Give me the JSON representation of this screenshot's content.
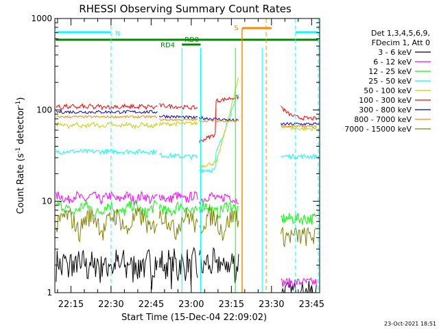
{
  "chart_data": {
    "type": "line",
    "title": "RHESSI Observing Summary Count Rates",
    "xlabel": "Start Time (15-Dec-04 22:09:02)",
    "ylabel_main": "Count Rate (s",
    "ylabel_sup1": "-1",
    "ylabel_mid": " detector",
    "ylabel_sup2": "-1",
    "ylabel_end": ")",
    "y_scale": "log",
    "ylim": [
      1,
      1000
    ],
    "xlim_min": [
      0,
      99
    ],
    "y_tick_labels": [
      "1",
      "10",
      "100",
      "1000"
    ],
    "y_tick_values": [
      1,
      10,
      100,
      1000
    ],
    "x_tick_labels": [
      "22:15",
      "22:30",
      "22:45",
      "23:00",
      "23:15",
      "23:30",
      "23:45"
    ],
    "x_tick_values_min": [
      6,
      21,
      36,
      51,
      66,
      81,
      96
    ],
    "legend_header": [
      "Det 1,3,4,5,6,9,",
      "FDecim 1, Att 0"
    ],
    "series": [
      {
        "name": "3 - 6 keV",
        "color": "#000000"
      },
      {
        "name": "6 - 12 keV",
        "color": "#ff00ff"
      },
      {
        "name": "12 - 25 keV",
        "color": "#00ff00"
      },
      {
        "name": "25 - 50 keV",
        "color": "#00ffff"
      },
      {
        "name": "50 - 100 keV",
        "color": "#cccc00"
      },
      {
        "name": "100 - 300 keV",
        "color": "#ff0000"
      },
      {
        "name": "300 - 800 keV",
        "color": "#0000cc"
      },
      {
        "name": "800 - 7000 keV",
        "color": "#ff8800"
      },
      {
        "name": "7000 - 15000 keV",
        "color": "#808000"
      }
    ],
    "flags": [
      {
        "label": "N",
        "color": "#00ffff"
      },
      {
        "label": "RD0",
        "color": "#008800"
      },
      {
        "label": "RD4",
        "color": "#008800"
      },
      {
        "label": "S",
        "color": "#ff8800"
      }
    ],
    "timestamp": "23-Oct-2021 18:51"
  }
}
